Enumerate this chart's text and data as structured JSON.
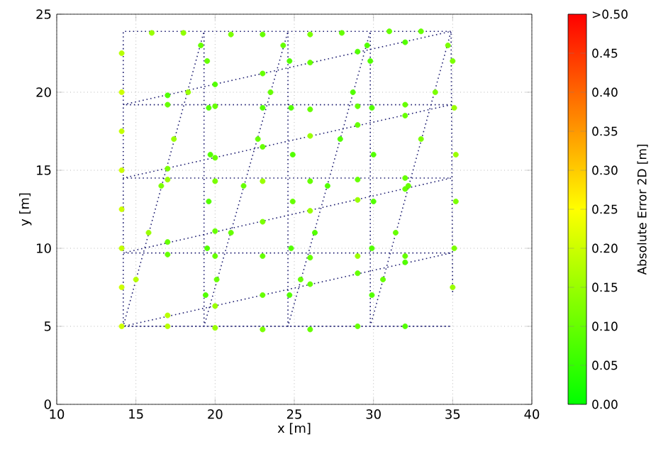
{
  "chart_data": {
    "type": "scatter",
    "xlabel": "x [m]",
    "ylabel": "y [m]",
    "clabel": "Absolute Error 2D [m]",
    "xlim": [
      10,
      40
    ],
    "ylim": [
      0,
      25
    ],
    "xticks": [
      10,
      15,
      20,
      25,
      30,
      35,
      40
    ],
    "yticks": [
      0,
      5,
      10,
      15,
      20,
      25
    ],
    "clim": [
      0,
      0.5
    ],
    "cticks": [
      {
        "value": 0,
        "label": "0.00"
      },
      {
        "value": 0.05,
        "label": "0.05"
      },
      {
        "value": 0.1,
        "label": "0.10"
      },
      {
        "value": 0.15,
        "label": "0.15"
      },
      {
        "value": 0.2,
        "label": "0.20"
      },
      {
        "value": 0.25,
        "label": "0.25"
      },
      {
        "value": 0.3,
        "label": "0.30"
      },
      {
        "value": 0.35,
        "label": "0.35"
      },
      {
        "value": 0.4,
        "label": "0.40"
      },
      {
        "value": 0.45,
        "label": "0.45"
      },
      {
        "value": 0.5,
        "label": ">0.50"
      }
    ],
    "grid": true,
    "series": [
      {
        "x": [
          14.1,
          14.1,
          14.1,
          14.1,
          14.1,
          14.1,
          14.1,
          14.1,
          16,
          18,
          21,
          23,
          26,
          28,
          31,
          33,
          17,
          20,
          23,
          26,
          29,
          32,
          17,
          20,
          23,
          26,
          29,
          32,
          17,
          20,
          23,
          26,
          29,
          32,
          17,
          20,
          23,
          26,
          29,
          32,
          17,
          20,
          23,
          26,
          29,
          32,
          17,
          20,
          23,
          26,
          29,
          32,
          17,
          20,
          23,
          26,
          29,
          32,
          17,
          20,
          23,
          26,
          29,
          32,
          15.0,
          15.8,
          16.6,
          17.4,
          18.3,
          19.1,
          19.5,
          19.6,
          19.7,
          19.6,
          19.5,
          19.4,
          20.1,
          21.0,
          21.8,
          22.7,
          23.5,
          24.3,
          24.7,
          24.8,
          24.9,
          24.9,
          24.8,
          24.7,
          25.4,
          26.3,
          27.1,
          27.9,
          28.7,
          29.6,
          29.8,
          29.9,
          30.0,
          30.0,
          29.9,
          29.9,
          30.6,
          31.4,
          32.2,
          33.0,
          33.9,
          34.7,
          35.0,
          35.1,
          35.2,
          35.2,
          35.1,
          35.0
        ],
        "values": [
          5,
          7.5,
          10,
          12.5,
          15,
          17.5,
          20,
          22.5,
          23.8,
          23.8,
          23.7,
          23.7,
          23.7,
          23.8,
          23.9,
          23.9,
          19.8,
          20.5,
          21.2,
          21.9,
          22.6,
          23.2,
          19.2,
          19.1,
          19.0,
          18.9,
          19.1,
          19.2,
          15.1,
          15.8,
          16.5,
          17.2,
          17.9,
          18.5,
          14.4,
          14.3,
          14.3,
          14.3,
          14.4,
          14.5,
          10.4,
          11.1,
          11.7,
          12.4,
          13.1,
          13.8,
          9.6,
          9.5,
          9.5,
          9.4,
          9.5,
          9.5,
          5.7,
          6.3,
          7.0,
          7.7,
          8.4,
          9.1,
          5.0,
          4.9,
          4.8,
          4.8,
          5.0,
          5.0,
          8,
          11,
          14,
          17,
          20,
          23,
          22,
          19,
          16,
          13,
          10,
          7,
          8,
          11,
          14,
          17,
          20,
          23,
          22,
          19,
          16,
          13,
          10,
          7,
          8,
          11,
          14,
          17,
          20,
          23,
          22,
          19,
          16,
          13,
          10,
          7,
          8,
          11,
          14,
          17,
          20,
          23,
          22,
          19,
          16,
          13,
          10,
          7.5
        ],
        "colors": [
          "#ccff00",
          "#ccff00",
          "#c2ff00",
          "#ccff00",
          "#ccff00",
          "#c2ff00",
          "#ccff00",
          "#b8ff00",
          "#99ff00",
          "#8fff00",
          "#7aff00",
          "#66ff00",
          "#7aff00",
          "#66ff00",
          "#66ff00",
          "#66ff00",
          "#52ff00",
          "#52ff00",
          "#66ff00",
          "#66ff00",
          "#52ff00",
          "#52ff00",
          "#66ff00",
          "#66ff00",
          "#52ff00",
          "#66ff00",
          "#66ff00",
          "#66ff00",
          "#7aff00",
          "#66ff00",
          "#66ff00",
          "#99ff00",
          "#66ff00",
          "#66ff00",
          "#99ff00",
          "#7aff00",
          "#99ff00",
          "#66ff00",
          "#66ff00",
          "#66ff00",
          "#66ff00",
          "#66ff00",
          "#7aff00",
          "#99ff00",
          "#99ff00",
          "#66ff00",
          "#66ff00",
          "#66ff00",
          "#66ff00",
          "#66ff00",
          "#99ff00",
          "#66ff00",
          "#b8ff00",
          "#99ff00",
          "#66ff00",
          "#66ff00",
          "#66ff00",
          "#52ff00",
          "#b8ff00",
          "#99ff00",
          "#7aff00",
          "#66ff00",
          "#66ff00",
          "#52ff00",
          "#b8ff00",
          "#99ff00",
          "#7aff00",
          "#99ff00",
          "#99ff00",
          "#66ff00",
          "#66ff00",
          "#52ff00",
          "#52ff00",
          "#52ff00",
          "#52ff00",
          "#52ff00",
          "#66ff00",
          "#66ff00",
          "#66ff00",
          "#66ff00",
          "#66ff00",
          "#66ff00",
          "#52ff00",
          "#52ff00",
          "#52ff00",
          "#66ff00",
          "#52ff00",
          "#52ff00",
          "#66ff00",
          "#52ff00",
          "#52ff00",
          "#52ff00",
          "#52ff00",
          "#52ff00",
          "#52ff00",
          "#52ff00",
          "#52ff00",
          "#52ff00",
          "#52ff00",
          "#52ff00",
          "#66ff00",
          "#66ff00",
          "#66ff00",
          "#7aff00",
          "#7aff00",
          "#7aff00",
          "#7aff00",
          "#99ff00",
          "#99ff00",
          "#7aff00",
          "#7aff00",
          "#99ff00"
        ],
        "cvalues": [
          0.2,
          0.2,
          0.19,
          0.2,
          0.2,
          0.19,
          0.2,
          0.18,
          0.15,
          0.14,
          0.12,
          0.1,
          0.12,
          0.1,
          0.1,
          0.1,
          0.08,
          0.08,
          0.1,
          0.1,
          0.08,
          0.08,
          0.1,
          0.1,
          0.08,
          0.1,
          0.1,
          0.1,
          0.12,
          0.1,
          0.1,
          0.15,
          0.1,
          0.1,
          0.15,
          0.12,
          0.15,
          0.1,
          0.1,
          0.1,
          0.1,
          0.1,
          0.12,
          0.15,
          0.15,
          0.1,
          0.1,
          0.1,
          0.1,
          0.1,
          0.15,
          0.1,
          0.18,
          0.15,
          0.1,
          0.1,
          0.1,
          0.08,
          0.18,
          0.15,
          0.12,
          0.1,
          0.1,
          0.08,
          0.18,
          0.15,
          0.12,
          0.15,
          0.15,
          0.1,
          0.1,
          0.08,
          0.08,
          0.08,
          0.08,
          0.08,
          0.1,
          0.1,
          0.1,
          0.1,
          0.1,
          0.1,
          0.08,
          0.08,
          0.08,
          0.1,
          0.08,
          0.08,
          0.1,
          0.08,
          0.08,
          0.08,
          0.08,
          0.08,
          0.08,
          0.08,
          0.08,
          0.08,
          0.08,
          0.08,
          0.1,
          0.1,
          0.1,
          0.12,
          0.12,
          0.12,
          0.12,
          0.15,
          0.15,
          0.12,
          0.12,
          0.15
        ]
      },
      {
        "type": "line",
        "color": "#1c1c70",
        "line_style": "dotted",
        "x": [
          14.2,
          14.2,
          34.9,
          14.2,
          34.9,
          14.2,
          34.9,
          14.2,
          34.9,
          14.2,
          34.9,
          14.2,
          19.3,
          19.3,
          24.6,
          24.6,
          29.8,
          29.8,
          34.9,
          35.0
        ],
        "values": [
          5,
          23.9,
          23.9,
          19.2,
          19.2,
          14.5,
          14.5,
          9.7,
          9.7,
          5,
          5,
          5,
          23.9,
          5,
          23.9,
          5,
          23.9,
          5,
          23.9,
          7
        ]
      }
    ]
  }
}
